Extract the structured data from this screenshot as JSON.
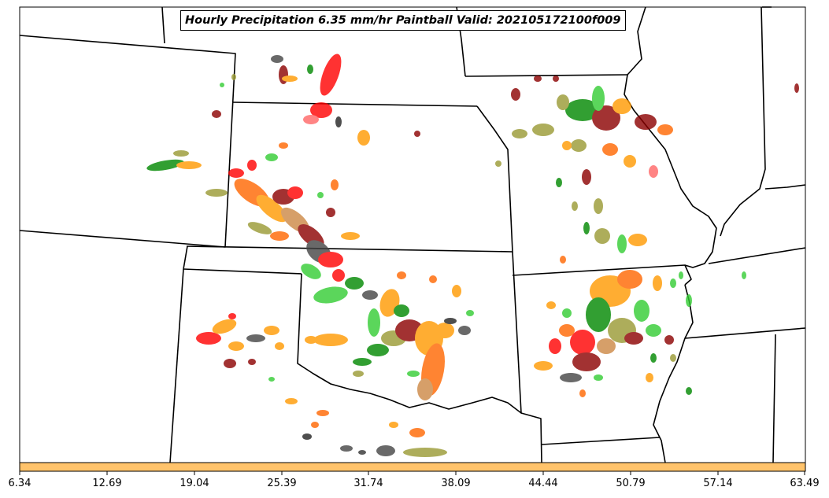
{
  "title": "Hourly Precipitation 6.35 mm/hr Paintball Valid: 202105172100f009",
  "colorbar": {
    "color": "#ffc36b",
    "ticks": [
      "6.34",
      "12.69",
      "19.04",
      "25.39",
      "31.74",
      "38.09",
      "44.44",
      "50.79",
      "57.14",
      "63.49"
    ]
  },
  "member_colors": [
    "#ff0000",
    "#ff6600",
    "#ff9900",
    "#33cc33",
    "#008800",
    "#8b0000",
    "#999933",
    "#444444",
    "#ff6666",
    "#cc8844"
  ]
}
